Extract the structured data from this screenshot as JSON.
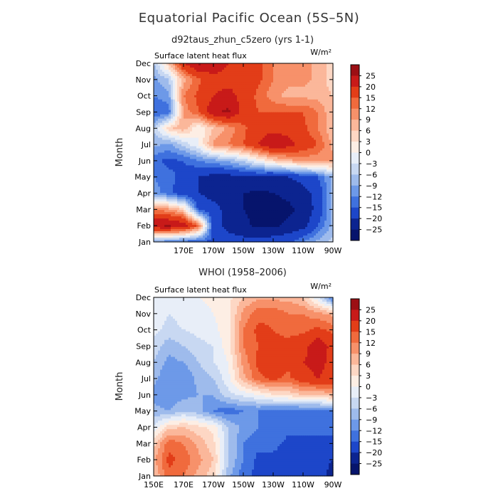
{
  "figure": {
    "title": "Equatorial Pacific Ocean (5S–5N)",
    "subtitle_top": "d92taus_zhun_c5zero (yrs 1-1)",
    "subtitle_bottom": "WHOI (1958–2006)"
  },
  "chart_data": [
    {
      "type": "heatmap",
      "title": "d92taus_zhun_c5zero (yrs 1-1)",
      "left_label": "Surface latent heat flux",
      "units": "W/m²",
      "ylabel": "Month",
      "xlabel": "",
      "x_ticks": [
        "170E",
        "170W",
        "150W",
        "130W",
        "110W",
        "90W"
      ],
      "x_tick_values": [
        170,
        190,
        210,
        230,
        250,
        270
      ],
      "xlim": [
        150,
        270
      ],
      "y_ticks": [
        "Jan",
        "Feb",
        "Mar",
        "Apr",
        "May",
        "Jun",
        "Jul",
        "Aug",
        "Sep",
        "Oct",
        "Nov",
        "Dec"
      ],
      "ylim": [
        1,
        12
      ],
      "x": [
        150,
        160,
        170,
        180,
        190,
        200,
        210,
        220,
        230,
        240,
        250,
        260,
        270
      ],
      "y": [
        1,
        2,
        3,
        4,
        5,
        6,
        7,
        8,
        9,
        10,
        11,
        12
      ],
      "z": [
        [
          -10,
          -12,
          -14,
          -15,
          -16,
          -17,
          -18,
          -18,
          -17,
          -16,
          -12,
          -8,
          -5
        ],
        [
          25,
          26,
          24,
          14,
          -18,
          -22,
          -24,
          -26,
          -26,
          -24,
          -22,
          -15,
          -8
        ],
        [
          12,
          10,
          5,
          -16,
          -18,
          -22,
          -25,
          -26,
          -27,
          -26,
          -24,
          -18,
          -8
        ],
        [
          -10,
          -14,
          -18,
          -20,
          -22,
          -24,
          -25,
          -26,
          -25,
          -24,
          -22,
          -18,
          -8
        ],
        [
          -12,
          -14,
          -16,
          -20,
          -22,
          -22,
          -20,
          -20,
          -22,
          -20,
          -18,
          -15,
          -8
        ],
        [
          -14,
          -16,
          -15,
          -12,
          -10,
          -8,
          -5,
          0,
          5,
          8,
          10,
          10,
          10
        ],
        [
          -8,
          -10,
          -5,
          0,
          10,
          12,
          15,
          20,
          25,
          22,
          18,
          15,
          8
        ],
        [
          -6,
          5,
          8,
          0,
          6,
          10,
          14,
          18,
          18,
          18,
          16,
          12,
          6
        ],
        [
          -15,
          -14,
          10,
          15,
          24,
          26,
          18,
          15,
          15,
          15,
          15,
          12,
          6
        ],
        [
          -12,
          -10,
          12,
          16,
          20,
          22,
          18,
          14,
          10,
          8,
          8,
          8,
          6
        ],
        [
          -10,
          -6,
          8,
          14,
          18,
          18,
          18,
          16,
          12,
          10,
          10,
          8,
          4
        ],
        [
          -6,
          6,
          20,
          26,
          24,
          20,
          18,
          16,
          12,
          10,
          10,
          8,
          4
        ]
      ],
      "colorbar_labels": [
        "25",
        "20",
        "15",
        "12",
        "9",
        "6",
        "3",
        "0",
        "−3",
        "−6",
        "−9",
        "−12",
        "−15",
        "−20",
        "−25"
      ]
    },
    {
      "type": "heatmap",
      "title": "WHOI (1958–2006)",
      "left_label": "Surface latent heat flux",
      "units": "W/m²",
      "ylabel": "Month",
      "xlabel": "",
      "x_ticks": [
        "150E",
        "170E",
        "170W",
        "150W",
        "130W",
        "110W",
        "90W"
      ],
      "x_tick_values": [
        150,
        170,
        190,
        210,
        230,
        250,
        270
      ],
      "xlim": [
        150,
        270
      ],
      "y_ticks": [
        "Jan",
        "Feb",
        "Mar",
        "Apr",
        "May",
        "Jun",
        "Jul",
        "Aug",
        "Sep",
        "Oct",
        "Nov",
        "Dec"
      ],
      "ylim": [
        1,
        12
      ],
      "x": [
        150,
        160,
        170,
        180,
        190,
        200,
        210,
        220,
        230,
        240,
        250,
        260,
        270
      ],
      "y": [
        1,
        2,
        3,
        4,
        5,
        6,
        7,
        8,
        9,
        10,
        11,
        12
      ],
      "z": [
        [
          6,
          14,
          12,
          8,
          4,
          -8,
          -14,
          -16,
          -16,
          -18,
          -20,
          -18,
          -22
        ],
        [
          8,
          16,
          14,
          10,
          6,
          -6,
          -12,
          -16,
          -16,
          -16,
          -18,
          -18,
          -20
        ],
        [
          5,
          14,
          12,
          8,
          4,
          -6,
          -12,
          -14,
          -14,
          -16,
          -16,
          -16,
          -16
        ],
        [
          -3,
          5,
          6,
          4,
          2,
          -6,
          -10,
          -12,
          -12,
          -14,
          -14,
          -14,
          -14
        ],
        [
          -8,
          -9,
          -6,
          -8,
          -12,
          -14,
          -12,
          -12,
          -14,
          -14,
          -14,
          -14,
          -12
        ],
        [
          -10,
          -12,
          -10,
          -9,
          -9,
          -4,
          -2,
          0,
          3,
          4,
          6,
          6,
          8
        ],
        [
          -8,
          -12,
          -12,
          -8,
          -6,
          -1,
          8,
          14,
          16,
          14,
          18,
          20,
          18
        ],
        [
          -6,
          -10,
          -9,
          -6,
          -3,
          0,
          10,
          16,
          18,
          16,
          20,
          22,
          18
        ],
        [
          -4,
          -8,
          -6,
          -4,
          -3,
          2,
          12,
          15,
          16,
          16,
          18,
          24,
          18
        ],
        [
          -2,
          -4,
          -3,
          -2,
          -1,
          2,
          12,
          16,
          15,
          14,
          14,
          16,
          14
        ],
        [
          -1,
          -3,
          -2,
          -2,
          0,
          2,
          10,
          14,
          14,
          12,
          12,
          10,
          8
        ],
        [
          -1,
          -2,
          -1,
          0,
          1,
          2,
          6,
          8,
          8,
          8,
          6,
          -3,
          -14
        ]
      ],
      "colorbar_labels": [
        "25",
        "20",
        "15",
        "12",
        "9",
        "6",
        "3",
        "0",
        "−3",
        "−6",
        "−9",
        "−12",
        "−15",
        "−20",
        "−25"
      ]
    }
  ],
  "colors": {
    "scale_top_to_bottom": [
      "#9c0f14",
      "#c81a19",
      "#e23d18",
      "#f06a3d",
      "#f7916a",
      "#fbb79a",
      "#fdd7c4",
      "#fdeee4",
      "#e8eef8",
      "#c8d8f2",
      "#9ebbec",
      "#6d99e8",
      "#3f71de",
      "#1d46c9",
      "#0c2490",
      "#06146c"
    ]
  }
}
